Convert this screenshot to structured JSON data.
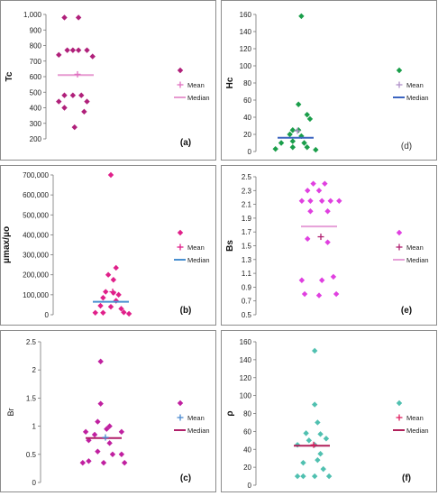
{
  "chart_data": [
    {
      "id": "a",
      "type": "scatter",
      "panel_label": "(a)",
      "ylabel": "Tc",
      "yticks": [
        "200",
        "300",
        "400",
        "500",
        "600",
        "700",
        "800",
        "900",
        "1,000"
      ],
      "ylim": [
        200,
        1000
      ],
      "point_color": "#b0207a",
      "mean_color": "#e070c0",
      "median_color": "#e79ad0",
      "points": [
        {
          "x": -0.2,
          "y": 980
        },
        {
          "x": 0.05,
          "y": 980
        },
        {
          "x": -0.3,
          "y": 740
        },
        {
          "x": -0.15,
          "y": 770
        },
        {
          "x": -0.05,
          "y": 770
        },
        {
          "x": 0.05,
          "y": 770
        },
        {
          "x": 0.2,
          "y": 770
        },
        {
          "x": 0.3,
          "y": 730
        },
        {
          "x": -0.2,
          "y": 480
        },
        {
          "x": -0.05,
          "y": 480
        },
        {
          "x": 0.1,
          "y": 480
        },
        {
          "x": -0.3,
          "y": 440
        },
        {
          "x": 0.2,
          "y": 440
        },
        {
          "x": -0.2,
          "y": 400
        },
        {
          "x": 0.15,
          "y": 375
        },
        {
          "x": -0.02,
          "y": 275
        }
      ],
      "mean": 615,
      "median": 610,
      "legend": {
        "points": "",
        "mean": "Mean",
        "median": "Median"
      }
    },
    {
      "id": "d",
      "type": "scatter",
      "panel_label": "(d)",
      "ylabel": "Hc",
      "yticks": [
        "0",
        "20",
        "40",
        "60",
        "80",
        "100",
        "120",
        "140",
        "160"
      ],
      "ylim": [
        0,
        160
      ],
      "point_color": "#1a9e4a",
      "mean_color": "#b090c8",
      "median_color": "#3c64c0",
      "points": [
        {
          "x": 0.1,
          "y": 158
        },
        {
          "x": 0.05,
          "y": 55
        },
        {
          "x": 0.2,
          "y": 43
        },
        {
          "x": 0.25,
          "y": 38
        },
        {
          "x": -0.05,
          "y": 25
        },
        {
          "x": 0.05,
          "y": 25
        },
        {
          "x": -0.1,
          "y": 20
        },
        {
          "x": 0.1,
          "y": 18
        },
        {
          "x": -0.25,
          "y": 10
        },
        {
          "x": -0.05,
          "y": 12
        },
        {
          "x": 0.15,
          "y": 10
        },
        {
          "x": -0.35,
          "y": 3
        },
        {
          "x": -0.05,
          "y": 5
        },
        {
          "x": 0.2,
          "y": 5
        },
        {
          "x": 0.35,
          "y": 2
        }
      ],
      "mean": 24,
      "median": 16,
      "legend": {
        "points": "",
        "mean": "Mean",
        "median": "Median"
      }
    },
    {
      "id": "b",
      "type": "scatter",
      "panel_label": "(b)",
      "ylabel": "μmax/μo",
      "yticks": [
        "0",
        "100,000",
        "200,000",
        "300,000",
        "400,000",
        "500,000",
        "600,000",
        "700,000"
      ],
      "ylim": [
        0,
        700000
      ],
      "point_color": "#e0208a",
      "mean_color": "#e0208a",
      "median_color": "#4a90d0",
      "points": [
        {
          "x": 0.0,
          "y": 700000
        },
        {
          "x": 0.1,
          "y": 235000
        },
        {
          "x": -0.05,
          "y": 200000
        },
        {
          "x": 0.05,
          "y": 175000
        },
        {
          "x": -0.1,
          "y": 115000
        },
        {
          "x": 0.05,
          "y": 110000
        },
        {
          "x": 0.15,
          "y": 100000
        },
        {
          "x": -0.15,
          "y": 85000
        },
        {
          "x": 0.1,
          "y": 70000
        },
        {
          "x": -0.2,
          "y": 45000
        },
        {
          "x": 0.0,
          "y": 40000
        },
        {
          "x": 0.2,
          "y": 30000
        },
        {
          "x": -0.3,
          "y": 10000
        },
        {
          "x": -0.15,
          "y": 10000
        },
        {
          "x": 0.25,
          "y": 12000
        },
        {
          "x": 0.35,
          "y": 5000
        }
      ],
      "mean": 115000,
      "median": 65000,
      "legend": {
        "points": "",
        "mean": "Mean",
        "median": "Median"
      }
    },
    {
      "id": "e",
      "type": "scatter",
      "panel_label": "(e)",
      "ylabel": "Bs",
      "yticks": [
        "0.5",
        "0.7",
        "0.9",
        "1.1",
        "1.3",
        "1.5",
        "1.7",
        "1.9",
        "2.1",
        "2.3",
        "2.5"
      ],
      "ylim": [
        0.5,
        2.5
      ],
      "point_color": "#e040e0",
      "mean_color": "#b02070",
      "median_color": "#e6a0d8",
      "points": [
        {
          "x": -0.1,
          "y": 2.4
        },
        {
          "x": 0.1,
          "y": 2.4
        },
        {
          "x": -0.2,
          "y": 2.3
        },
        {
          "x": 0.0,
          "y": 2.3
        },
        {
          "x": -0.3,
          "y": 2.15
        },
        {
          "x": -0.15,
          "y": 2.15
        },
        {
          "x": 0.05,
          "y": 2.15
        },
        {
          "x": 0.2,
          "y": 2.15
        },
        {
          "x": 0.35,
          "y": 2.15
        },
        {
          "x": -0.15,
          "y": 2.0
        },
        {
          "x": 0.15,
          "y": 2.0
        },
        {
          "x": -0.2,
          "y": 1.6
        },
        {
          "x": 0.15,
          "y": 1.55
        },
        {
          "x": -0.3,
          "y": 1.0
        },
        {
          "x": 0.05,
          "y": 1.0
        },
        {
          "x": 0.25,
          "y": 1.05
        },
        {
          "x": -0.25,
          "y": 0.8
        },
        {
          "x": 0.0,
          "y": 0.78
        },
        {
          "x": 0.3,
          "y": 0.8
        }
      ],
      "mean": 1.63,
      "median": 1.78,
      "legend": {
        "points": "",
        "mean": "Mean",
        "median": "Median"
      }
    },
    {
      "id": "c",
      "type": "scatter",
      "panel_label": "(c)",
      "ylabel": "Br",
      "yticks": [
        "0",
        "0.5",
        "1",
        "1.5",
        "2",
        "2.5"
      ],
      "ylim": [
        0,
        2.5
      ],
      "point_color": "#c020a0",
      "mean_color": "#4a8ad0",
      "median_color": "#b0206a",
      "points": [
        {
          "x": -0.05,
          "y": 2.15
        },
        {
          "x": -0.05,
          "y": 1.4
        },
        {
          "x": -0.1,
          "y": 1.08
        },
        {
          "x": 0.1,
          "y": 1.0
        },
        {
          "x": -0.3,
          "y": 0.9
        },
        {
          "x": -0.15,
          "y": 0.85
        },
        {
          "x": 0.05,
          "y": 0.95
        },
        {
          "x": 0.3,
          "y": 0.9
        },
        {
          "x": -0.25,
          "y": 0.75
        },
        {
          "x": 0.1,
          "y": 0.7
        },
        {
          "x": -0.1,
          "y": 0.55
        },
        {
          "x": 0.15,
          "y": 0.5
        },
        {
          "x": 0.3,
          "y": 0.5
        },
        {
          "x": -0.35,
          "y": 0.35
        },
        {
          "x": -0.25,
          "y": 0.38
        },
        {
          "x": 0.0,
          "y": 0.35
        },
        {
          "x": 0.35,
          "y": 0.35
        }
      ],
      "mean": 0.8,
      "median": 0.79,
      "legend": {
        "points": "",
        "mean": "Mean",
        "median": "Median"
      }
    },
    {
      "id": "f",
      "type": "scatter",
      "panel_label": "(f)",
      "ylabel": "ρ",
      "yticks": [
        "0",
        "20",
        "40",
        "60",
        "80",
        "100",
        "120",
        "140",
        "160"
      ],
      "ylim": [
        0,
        160
      ],
      "point_color": "#50c0b0",
      "mean_color": "#e02060",
      "median_color": "#b0205a",
      "points": [
        {
          "x": 0.05,
          "y": 150
        },
        {
          "x": 0.05,
          "y": 90
        },
        {
          "x": 0.1,
          "y": 70
        },
        {
          "x": -0.1,
          "y": 58
        },
        {
          "x": 0.15,
          "y": 57
        },
        {
          "x": -0.05,
          "y": 50
        },
        {
          "x": 0.25,
          "y": 52
        },
        {
          "x": -0.25,
          "y": 45
        },
        {
          "x": 0.05,
          "y": 45
        },
        {
          "x": 0.15,
          "y": 35
        },
        {
          "x": -0.15,
          "y": 25
        },
        {
          "x": 0.1,
          "y": 28
        },
        {
          "x": -0.25,
          "y": 10
        },
        {
          "x": -0.15,
          "y": 10
        },
        {
          "x": 0.05,
          "y": 10
        },
        {
          "x": 0.2,
          "y": 18
        },
        {
          "x": 0.3,
          "y": 10
        }
      ],
      "mean": 45,
      "median": 44,
      "legend": {
        "points": "",
        "mean": "Mean",
        "median": "Median"
      }
    }
  ]
}
